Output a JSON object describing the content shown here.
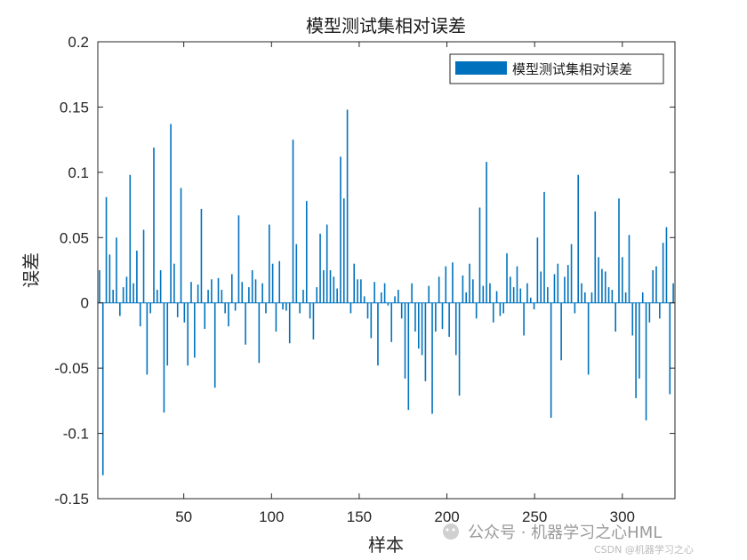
{
  "chart_data": {
    "type": "bar",
    "title": "模型测试集相对误差",
    "xlabel": "样本",
    "ylabel": "误差",
    "xlim": [
      1,
      330
    ],
    "ylim": [
      -0.15,
      0.2
    ],
    "x_ticks": [
      50,
      100,
      150,
      200,
      250,
      300
    ],
    "y_ticks": [
      -0.15,
      -0.1,
      -0.05,
      0,
      0.05,
      0.1,
      0.15,
      0.2
    ],
    "y_tick_labels": [
      "-0.15",
      "-0.1",
      "-0.05",
      "0",
      "0.05",
      "0.1",
      "0.15",
      "0.2"
    ],
    "legend": {
      "label": "模型测试集相对误差",
      "position": "top-right"
    },
    "grid": false,
    "bar_color": "#0072BD",
    "series": [
      {
        "name": "模型测试集相对误差",
        "values": [
          0.025,
          -0.132,
          0.081,
          0.037,
          0.01,
          0.05,
          -0.01,
          0.012,
          0.02,
          0.098,
          0.015,
          0.04,
          -0.018,
          0.056,
          -0.055,
          -0.008,
          0.119,
          0.01,
          0.025,
          -0.084,
          -0.048,
          0.137,
          0.03,
          -0.011,
          0.088,
          -0.015,
          -0.048,
          0.016,
          -0.042,
          0.014,
          0.072,
          -0.02,
          0.01,
          0.018,
          -0.065,
          0.019,
          0.01,
          -0.008,
          -0.018,
          0.022,
          -0.006,
          0.067,
          0.016,
          -0.032,
          0.012,
          0.025,
          0.018,
          -0.046,
          0.015,
          -0.008,
          0.06,
          0.03,
          -0.022,
          0.032,
          -0.005,
          -0.006,
          -0.031,
          0.125,
          0.045,
          -0.008,
          0.01,
          0.078,
          -0.012,
          -0.028,
          0.012,
          0.053,
          0.025,
          0.06,
          0.025,
          0.02,
          0.011,
          0.112,
          0.08,
          0.148,
          -0.008,
          0.03,
          0.018,
          0.018,
          0.005,
          -0.012,
          -0.027,
          0.016,
          -0.048,
          0.008,
          0.015,
          -0.002,
          -0.03,
          0.005,
          0.01,
          -0.012,
          -0.058,
          -0.082,
          0.015,
          -0.022,
          -0.035,
          -0.04,
          -0.06,
          0.013,
          -0.085,
          -0.022,
          0.02,
          -0.02,
          0.028,
          -0.026,
          0.031,
          -0.04,
          -0.071,
          0.021,
          0.008,
          0.03,
          0.018,
          -0.012,
          0.073,
          0.013,
          0.108,
          0.015,
          -0.015,
          0.009,
          -0.01,
          -0.008,
          0.038,
          0.02,
          0.012,
          0.028,
          0.011,
          -0.025,
          0.015,
          0.004,
          -0.005,
          0.05,
          0.024,
          0.085,
          0.012,
          -0.088,
          0.022,
          0.03,
          -0.044,
          0.02,
          0.029,
          0.045,
          -0.008,
          0.098,
          0.015,
          0.008,
          -0.055,
          0.008,
          0.07,
          0.035,
          0.026,
          0.024,
          0.012,
          0.01,
          -0.022,
          0.08,
          0.035,
          0.008,
          0.052,
          -0.025,
          -0.073,
          -0.058,
          0.008,
          -0.09,
          -0.015,
          0.025,
          0.028,
          -0.012,
          0.046,
          0.058,
          -0.07,
          0.015
        ]
      }
    ]
  },
  "watermark": {
    "main": "公众号 · 机器学习之心HML",
    "small": "CSDN @机器学习之心"
  }
}
